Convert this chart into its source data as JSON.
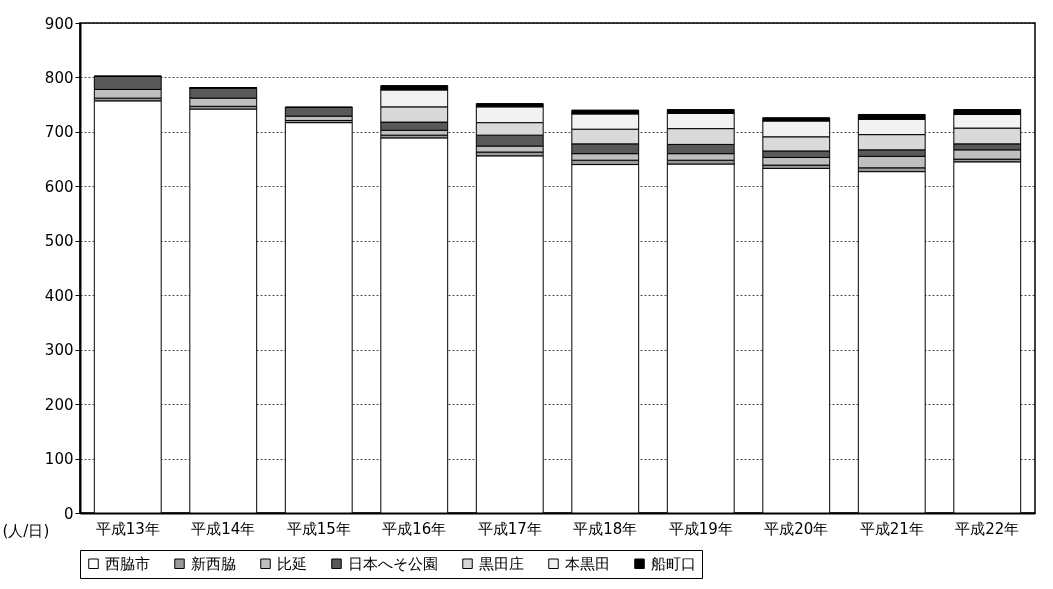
{
  "chart_data": {
    "type": "bar",
    "stacked": true,
    "ylabel": "(人/日)",
    "categories": [
      "平成13年",
      "平成14年",
      "平成15年",
      "平成16年",
      "平成17年",
      "平成18年",
      "平成19年",
      "平成20年",
      "平成21年",
      "平成22年"
    ],
    "series": [
      {
        "name": "西脇市",
        "color": "#ffffff",
        "values": [
          757,
          742,
          717,
          689,
          656,
          640,
          641,
          633,
          627,
          645
        ]
      },
      {
        "name": "新西脇",
        "color": "#999999",
        "values": [
          5,
          5,
          4,
          5,
          7,
          8,
          7,
          6,
          7,
          5
        ]
      },
      {
        "name": "比延",
        "color": "#bfbfbf",
        "values": [
          16,
          15,
          8,
          9,
          11,
          12,
          12,
          14,
          21,
          17
        ]
      },
      {
        "name": "日本へそ公園",
        "color": "#595959",
        "values": [
          24,
          19,
          16,
          15,
          20,
          18,
          17,
          12,
          12,
          11
        ]
      },
      {
        "name": "黒田庄",
        "color": "#d9d9d9",
        "values": [
          0,
          0,
          0,
          28,
          23,
          27,
          29,
          26,
          28,
          29
        ]
      },
      {
        "name": "本黒田",
        "color": "#f2f2f2",
        "values": [
          0,
          0,
          0,
          31,
          29,
          28,
          28,
          29,
          28,
          25
        ]
      },
      {
        "name": "船町口",
        "color": "#000000",
        "values": [
          0,
          0,
          0,
          8,
          6,
          7,
          7,
          6,
          9,
          9
        ]
      }
    ],
    "ylim": [
      0,
      900
    ],
    "yticks": [
      0,
      100,
      200,
      300,
      400,
      500,
      600,
      700,
      800,
      900
    ],
    "grid": "y",
    "legend": "bottom"
  }
}
